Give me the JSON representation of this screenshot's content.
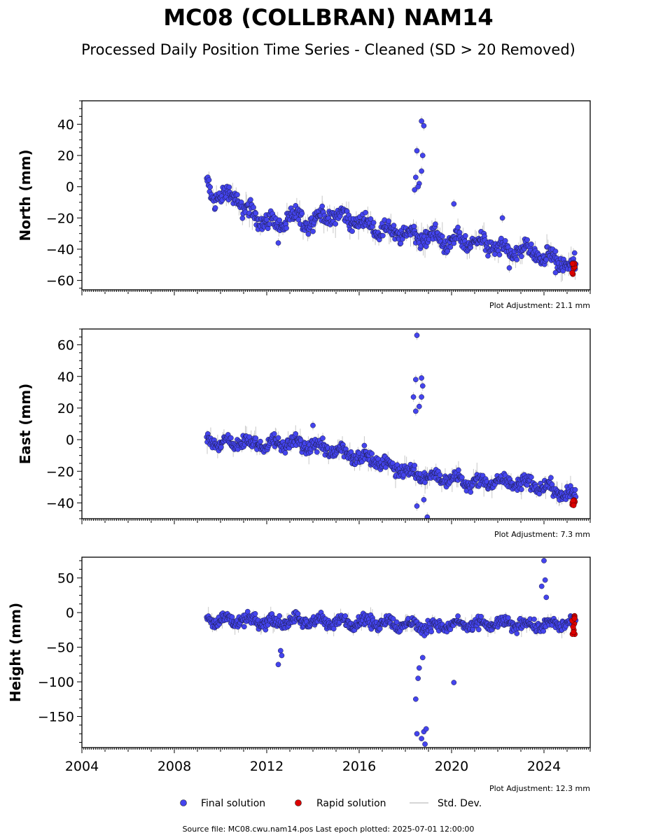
{
  "chart_data": {
    "type": "scatter",
    "title": "MC08 (COLLBRAN) NAM14",
    "subtitle": "Processed Daily Position Time Series - Cleaned (SD > 20 Removed)",
    "x_range": [
      2004.0,
      2026.0
    ],
    "x_ticks": [
      "2004",
      "2008",
      "2012",
      "2016",
      "2020",
      "2024"
    ],
    "colors": {
      "final": "#4444ee",
      "rapid": "#dd0000",
      "std_dev": "#c8c8c8",
      "axes": "#000000"
    },
    "legend": {
      "placement": "bottom-center",
      "items": [
        {
          "label": "Final solution",
          "marker": "circle",
          "color": "#4444ee"
        },
        {
          "label": "Rapid solution",
          "marker": "circle",
          "color": "#dd0000"
        },
        {
          "label": "Std. Dev.",
          "marker": "line",
          "color": "#c8c8c8"
        }
      ]
    },
    "footer": "Source file: MC08.cwu.nam14.pos  Last epoch plotted: 2025-07-01 12:00:00",
    "panels": [
      {
        "name": "north",
        "ylabel": "North (mm)",
        "ylim": [
          -66,
          55
        ],
        "yticks": [
          40,
          20,
          0,
          -20,
          -40,
          -60
        ],
        "adjustment": "Plot Adjustment: 21.1 mm",
        "trend": [
          [
            2009.4,
            3
          ],
          [
            2009.6,
            -5
          ],
          [
            2010.2,
            -7
          ],
          [
            2010.6,
            -5
          ],
          [
            2011.0,
            -15
          ],
          [
            2011.5,
            -18
          ],
          [
            2012.0,
            -22
          ],
          [
            2012.5,
            -25
          ],
          [
            2013.0,
            -20
          ],
          [
            2014.0,
            -22
          ],
          [
            2014.6,
            -18
          ],
          [
            2015.5,
            -20
          ],
          [
            2016.0,
            -23
          ],
          [
            2017.0,
            -28
          ],
          [
            2018.0,
            -30
          ],
          [
            2019.0,
            -33
          ],
          [
            2020.0,
            -35
          ],
          [
            2021.0,
            -35
          ],
          [
            2021.8,
            -38
          ],
          [
            2022.5,
            -42
          ],
          [
            2023.0,
            -40
          ],
          [
            2023.5,
            -42
          ],
          [
            2024.0,
            -45
          ],
          [
            2024.5,
            -47
          ],
          [
            2025.4,
            -52
          ]
        ],
        "scatter": 9,
        "outliers": [
          [
            2018.7,
            42
          ],
          [
            2018.8,
            39
          ],
          [
            2018.5,
            23
          ],
          [
            2018.75,
            20
          ],
          [
            2018.45,
            6
          ],
          [
            2018.6,
            2
          ],
          [
            2018.7,
            10
          ],
          [
            2018.55,
            0
          ],
          [
            2018.4,
            -2
          ],
          [
            2020.1,
            -11
          ],
          [
            2022.2,
            -20
          ],
          [
            2022.5,
            -52
          ],
          [
            2024.5,
            -55
          ],
          [
            2012.5,
            -36
          ]
        ],
        "rapid_range": [
          -56,
          -49
        ]
      },
      {
        "name": "east",
        "ylabel": "East (mm)",
        "ylim": [
          -50,
          70
        ],
        "yticks": [
          60,
          40,
          20,
          0,
          -20,
          -40
        ],
        "adjustment": "Plot Adjustment: 7.3 mm",
        "trend": [
          [
            2009.4,
            0
          ],
          [
            2010.0,
            -2
          ],
          [
            2011.0,
            -1
          ],
          [
            2012.0,
            -3
          ],
          [
            2013.0,
            -2
          ],
          [
            2014.0,
            -4
          ],
          [
            2015.0,
            -7
          ],
          [
            2016.0,
            -10
          ],
          [
            2017.0,
            -15
          ],
          [
            2018.0,
            -20
          ],
          [
            2019.0,
            -23
          ],
          [
            2020.0,
            -25
          ],
          [
            2021.0,
            -27
          ],
          [
            2022.0,
            -27
          ],
          [
            2023.0,
            -27
          ],
          [
            2024.0,
            -30
          ],
          [
            2025.4,
            -36
          ]
        ],
        "scatter": 7,
        "outliers": [
          [
            2018.5,
            66
          ],
          [
            2018.45,
            38
          ],
          [
            2018.7,
            39
          ],
          [
            2018.75,
            34
          ],
          [
            2018.35,
            27
          ],
          [
            2018.7,
            27
          ],
          [
            2018.6,
            21
          ],
          [
            2018.45,
            18
          ],
          [
            2018.5,
            -42
          ],
          [
            2018.8,
            -38
          ],
          [
            2018.95,
            -49
          ],
          [
            2014.0,
            9
          ]
        ],
        "rapid_range": [
          -42,
          -36
        ]
      },
      {
        "name": "height",
        "ylabel": "Height (mm)",
        "ylim": [
          -195,
          80
        ],
        "yticks": [
          50,
          0,
          -50,
          -100,
          -150
        ],
        "adjustment": "Plot Adjustment: 12.3 mm",
        "trend": [
          [
            2009.4,
            -8
          ],
          [
            2010.0,
            -10
          ],
          [
            2011.0,
            -12
          ],
          [
            2012.0,
            -14
          ],
          [
            2013.0,
            -12
          ],
          [
            2014.0,
            -12
          ],
          [
            2015.0,
            -14
          ],
          [
            2016.0,
            -13
          ],
          [
            2017.0,
            -15
          ],
          [
            2018.0,
            -17
          ],
          [
            2019.0,
            -20
          ],
          [
            2020.0,
            -18
          ],
          [
            2021.0,
            -18
          ],
          [
            2022.0,
            -16
          ],
          [
            2023.0,
            -17
          ],
          [
            2024.0,
            -18
          ],
          [
            2025.4,
            -14
          ]
        ],
        "scatter": 14,
        "outliers": [
          [
            2012.5,
            -75
          ],
          [
            2012.6,
            -55
          ],
          [
            2012.65,
            -62
          ],
          [
            2018.45,
            -125
          ],
          [
            2018.55,
            -95
          ],
          [
            2018.5,
            -175
          ],
          [
            2018.7,
            -182
          ],
          [
            2018.8,
            -172
          ],
          [
            2018.85,
            -190
          ],
          [
            2018.9,
            -168
          ],
          [
            2018.6,
            -80
          ],
          [
            2018.75,
            -65
          ],
          [
            2020.1,
            -101
          ],
          [
            2024.0,
            75
          ],
          [
            2024.05,
            47
          ],
          [
            2023.9,
            38
          ],
          [
            2024.1,
            22
          ]
        ],
        "rapid_range": [
          -32,
          -3
        ]
      }
    ]
  }
}
